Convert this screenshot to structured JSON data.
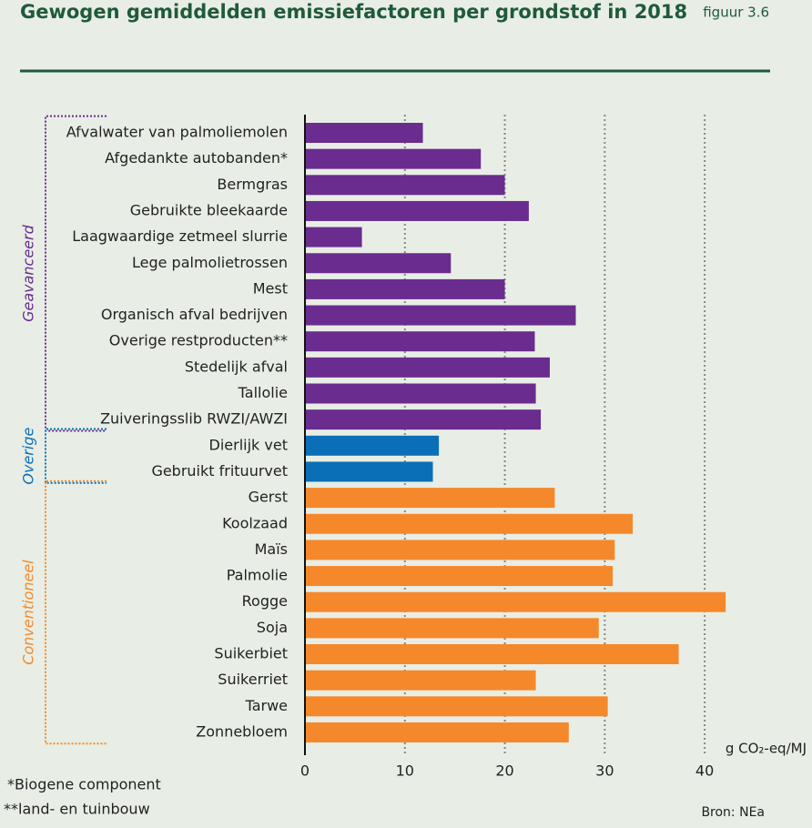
{
  "chart_data": {
    "type": "bar",
    "orientation": "horizontal",
    "title": "Gewogen gemiddelden emissiefactoren per grondstof in 2018",
    "figure_label": "figuur 3.6",
    "x_label": "g CO₂-eq/MJ",
    "categories": [
      "Afvalwater van palmoliemolen",
      "Afgedankte autobanden*",
      "Bermgras",
      "Gebruikte bleekaarde",
      "Laagwaardige zetmeel slurrie",
      "Lege palmolietrossen",
      "Mest",
      "Organisch afval bedrijven",
      "Overige restproducten**",
      "Stedelijk afval",
      "Tallolie",
      "Zuiveringsslib RWZI/AWZI",
      "Dierlijk vet",
      "Gebruikt frituurvet",
      "Gerst",
      "Koolzaad",
      "Maïs",
      "Palmolie",
      "Rogge",
      "Soja",
      "Suikerbiet",
      "Suikerriet",
      "Tarwe",
      "Zonnebloem"
    ],
    "series": [
      {
        "name": "Geavanceerd",
        "color": "#6a2c8e",
        "values": [
          11.8,
          17.6,
          20.0,
          22.4,
          5.7,
          14.6,
          20.0,
          27.1,
          23.0,
          24.5,
          23.1,
          23.6,
          null,
          null,
          null,
          null,
          null,
          null,
          null,
          null,
          null,
          null,
          null,
          null
        ]
      },
      {
        "name": "Overige",
        "color": "#0a6fb7",
        "values": [
          null,
          null,
          null,
          null,
          null,
          null,
          null,
          null,
          null,
          null,
          null,
          null,
          13.4,
          12.8,
          null,
          null,
          null,
          null,
          null,
          null,
          null,
          null,
          null,
          null
        ]
      },
      {
        "name": "Conventioneel",
        "color": "#f5882a",
        "values": [
          null,
          null,
          null,
          null,
          null,
          null,
          null,
          null,
          null,
          null,
          null,
          null,
          null,
          null,
          25.0,
          32.8,
          31.0,
          30.8,
          42.1,
          29.4,
          37.4,
          23.1,
          30.3,
          26.4
        ]
      }
    ],
    "xlim": [
      0,
      45
    ],
    "xticks": [
      0,
      10,
      20,
      30,
      40
    ],
    "grid": true,
    "footnotes": [
      "*Biogene component",
      "**land- en tuinbouw"
    ],
    "source": "Bron: NEa"
  }
}
